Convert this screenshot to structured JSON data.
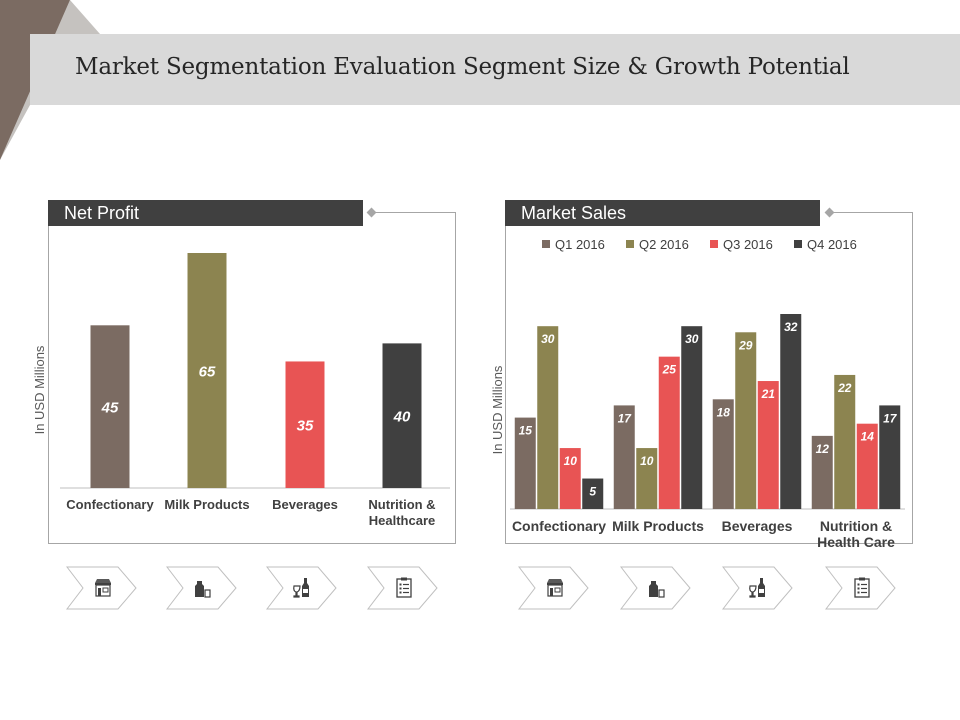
{
  "title": "Market Segmentation Evaluation Segment Size & Growth Potential",
  "colors": {
    "q1": "#7b6b62",
    "q2": "#8c8450",
    "q3": "#e85454",
    "q4": "#404040",
    "header_bg": "#404040",
    "title_band": "#d9d9d9",
    "corner": "#7b6b62"
  },
  "chart_data": [
    {
      "type": "bar",
      "title": "Net Profit",
      "ylabel": "In USD Millions",
      "categories": [
        "Confectionary",
        "Milk Products",
        "Beverages",
        "Nutrition & Healthcare"
      ],
      "category_lines": [
        [
          "Confectionary"
        ],
        [
          "Milk Products"
        ],
        [
          "Beverages"
        ],
        [
          "Nutrition &",
          "Healthcare"
        ]
      ],
      "values": [
        45,
        65,
        35,
        40
      ],
      "bar_colors": [
        "#7b6b62",
        "#8c8450",
        "#e85454",
        "#404040"
      ],
      "ylim": [
        0,
        65
      ],
      "grid": false
    },
    {
      "type": "bar",
      "title": "Market Sales",
      "ylabel": "In USD Millions",
      "categories": [
        "Confectionary",
        "Milk Products",
        "Beverages",
        "Nutrition & Health Care"
      ],
      "category_lines": [
        [
          "Confectionary"
        ],
        [
          "Milk Products"
        ],
        [
          "Beverages"
        ],
        [
          "Nutrition &",
          "Health Care"
        ]
      ],
      "series": [
        {
          "name": "Q1 2016",
          "values": [
            15,
            17,
            18,
            12
          ],
          "color": "#7b6b62"
        },
        {
          "name": "Q2 2016",
          "values": [
            30,
            10,
            29,
            22
          ],
          "color": "#8c8450"
        },
        {
          "name": "Q3 2016",
          "values": [
            10,
            25,
            21,
            14
          ],
          "color": "#e85454"
        },
        {
          "name": "Q4 2016",
          "values": [
            5,
            30,
            32,
            17
          ],
          "color": "#404040"
        }
      ],
      "ylim": [
        0,
        32
      ],
      "legend": "top",
      "grid": false
    }
  ],
  "icons": [
    "store-icon",
    "milk-icon",
    "wine-icon",
    "checklist-icon"
  ]
}
